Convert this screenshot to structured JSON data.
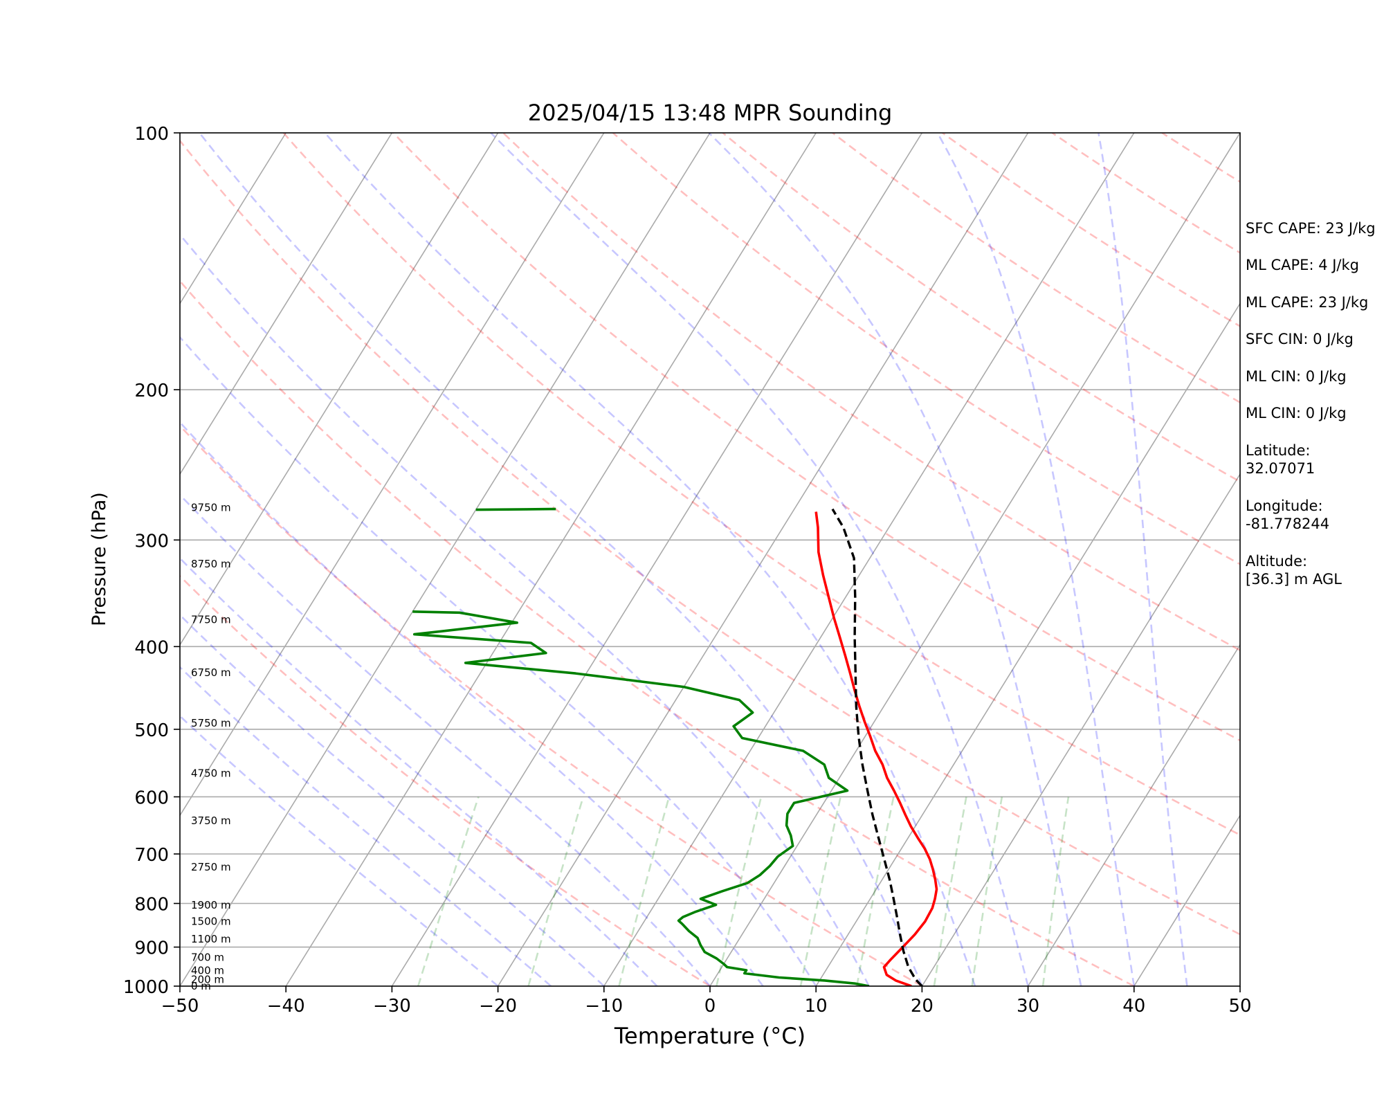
{
  "chart_data": {
    "type": "line",
    "title": "2025/04/15 13:48 MPR Sounding",
    "xlabel": "Temperature (°C)",
    "ylabel": "Pressure (hPa)",
    "xlim": [
      -50,
      50
    ],
    "ylim": [
      1000,
      100
    ],
    "y_scale": "log",
    "skew_per_decade": 50,
    "grid": true,
    "x_ticks": [
      "−50",
      "−40",
      "−30",
      "−20",
      "−10",
      "0",
      "10",
      "20",
      "30",
      "40",
      "50"
    ],
    "y_ticks": [
      "100",
      "200",
      "300",
      "400",
      "500",
      "600",
      "700",
      "800",
      "900",
      "1000"
    ],
    "height_labels": [
      {
        "text": "0 m",
        "p": 1000
      },
      {
        "text": "200 m",
        "p": 982
      },
      {
        "text": "400 m",
        "p": 959
      },
      {
        "text": "700 m",
        "p": 925
      },
      {
        "text": "1100 m",
        "p": 881
      },
      {
        "text": "1500 m",
        "p": 840
      },
      {
        "text": "1900 m",
        "p": 804
      },
      {
        "text": "2750 m",
        "p": 725
      },
      {
        "text": "3750 m",
        "p": 640
      },
      {
        "text": "4750 m",
        "p": 563
      },
      {
        "text": "5750 m",
        "p": 492
      },
      {
        "text": "6750 m",
        "p": 429
      },
      {
        "text": "7750 m",
        "p": 372
      },
      {
        "text": "8750 m",
        "p": 320
      },
      {
        "text": "9750 m",
        "p": 275
      }
    ],
    "series": [
      {
        "kind": "temperature",
        "color": "#ff0000",
        "points": [
          [
            19.0,
            1000
          ],
          [
            17.2,
            985
          ],
          [
            16.0,
            970
          ],
          [
            15.3,
            950
          ],
          [
            15.5,
            930
          ],
          [
            15.9,
            900
          ],
          [
            16.3,
            870
          ],
          [
            16.5,
            840
          ],
          [
            16.4,
            810
          ],
          [
            16.1,
            790
          ],
          [
            15.7,
            770
          ],
          [
            15.0,
            750
          ],
          [
            14.2,
            730
          ],
          [
            13.3,
            710
          ],
          [
            12.2,
            690
          ],
          [
            10.9,
            670
          ],
          [
            9.6,
            650
          ],
          [
            8.4,
            630
          ],
          [
            7.2,
            610
          ],
          [
            5.9,
            590
          ],
          [
            4.5,
            570
          ],
          [
            3.3,
            550
          ],
          [
            1.8,
            530
          ],
          [
            0.5,
            510
          ],
          [
            -0.9,
            490
          ],
          [
            -2.3,
            470
          ],
          [
            -3.7,
            450
          ],
          [
            -5.1,
            430
          ],
          [
            -6.6,
            410
          ],
          [
            -8.2,
            390
          ],
          [
            -9.9,
            370
          ],
          [
            -11.6,
            350
          ],
          [
            -13.4,
            330
          ],
          [
            -15.2,
            310
          ],
          [
            -16.7,
            290
          ],
          [
            -17.8,
            278
          ]
        ]
      },
      {
        "kind": "dewpoint",
        "color": "#008000",
        "points": [
          [
            15.0,
            1000
          ],
          [
            13.5,
            993
          ],
          [
            10.5,
            985
          ],
          [
            6.0,
            977
          ],
          [
            2.5,
            966
          ],
          [
            2.5,
            958
          ],
          [
            0.5,
            950
          ],
          [
            0.0,
            942
          ],
          [
            -1.0,
            928
          ],
          [
            -2.5,
            912
          ],
          [
            -3.3,
            895
          ],
          [
            -4.0,
            878
          ],
          [
            -5.2,
            862
          ],
          [
            -6.3,
            845
          ],
          [
            -6.8,
            838
          ],
          [
            -6.6,
            830
          ],
          [
            -5.7,
            818
          ],
          [
            -4.2,
            803
          ],
          [
            -6.0,
            790
          ],
          [
            -4.4,
            774
          ],
          [
            -2.5,
            757
          ],
          [
            -1.8,
            741
          ],
          [
            -1.4,
            723
          ],
          [
            -1.2,
            705
          ],
          [
            -0.4,
            685
          ],
          [
            -1.2,
            666
          ],
          [
            -2.2,
            648
          ],
          [
            -2.8,
            628
          ],
          [
            -2.8,
            610
          ],
          [
            1.5,
            590
          ],
          [
            -1.0,
            570
          ],
          [
            -2.2,
            550
          ],
          [
            -5.0,
            530
          ],
          [
            -11.5,
            512
          ],
          [
            -13.0,
            496
          ],
          [
            -12.0,
            478
          ],
          [
            -14.0,
            462
          ],
          [
            -20.0,
            446
          ],
          [
            -31.0,
            430
          ],
          [
            -42.0,
            418
          ],
          [
            -35.0,
            407
          ],
          [
            -37.0,
            396
          ],
          [
            -48.5,
            387
          ],
          [
            -39.5,
            375
          ],
          [
            -45.5,
            365
          ],
          [
            -50.0,
            364
          ]
        ]
      },
      {
        "kind": "dewpoint-upper",
        "color": "#008000",
        "points": [
          [
            -50.0,
            276.5
          ],
          [
            -43.0,
            276
          ],
          [
            -42.5,
            276
          ]
        ]
      },
      {
        "kind": "parcel",
        "color": "#000000",
        "points": [
          [
            20.0,
            1000
          ],
          [
            19.0,
            982
          ],
          [
            17.6,
            950
          ],
          [
            16.2,
            910
          ],
          [
            14.9,
            870
          ],
          [
            13.6,
            830
          ],
          [
            12.2,
            790
          ],
          [
            10.7,
            750
          ],
          [
            9.0,
            710
          ],
          [
            7.2,
            670
          ],
          [
            5.3,
            630
          ],
          [
            3.4,
            590
          ],
          [
            1.4,
            550
          ],
          [
            -0.6,
            510
          ],
          [
            -2.6,
            470
          ],
          [
            -4.6,
            430
          ],
          [
            -6.8,
            390
          ],
          [
            -9.1,
            350
          ],
          [
            -11.5,
            315
          ],
          [
            -14.3,
            290
          ],
          [
            -16.4,
            276
          ]
        ]
      }
    ]
  },
  "info": {
    "sfc_cape": "SFC CAPE: 23 J/kg",
    "ml_cape_1": "ML CAPE: 4 J/kg",
    "ml_cape_2": "ML CAPE: 23 J/kg",
    "sfc_cin": "SFC CIN: 0 J/kg",
    "ml_cin_1": "ML CIN: 0 J/kg",
    "ml_cin_2": "ML CIN: 0 J/kg",
    "latitude": "Latitude:\n32.07071",
    "longitude": "Longitude:\n-81.778244",
    "altitude": "Altitude:\n[36.3] m AGL"
  }
}
